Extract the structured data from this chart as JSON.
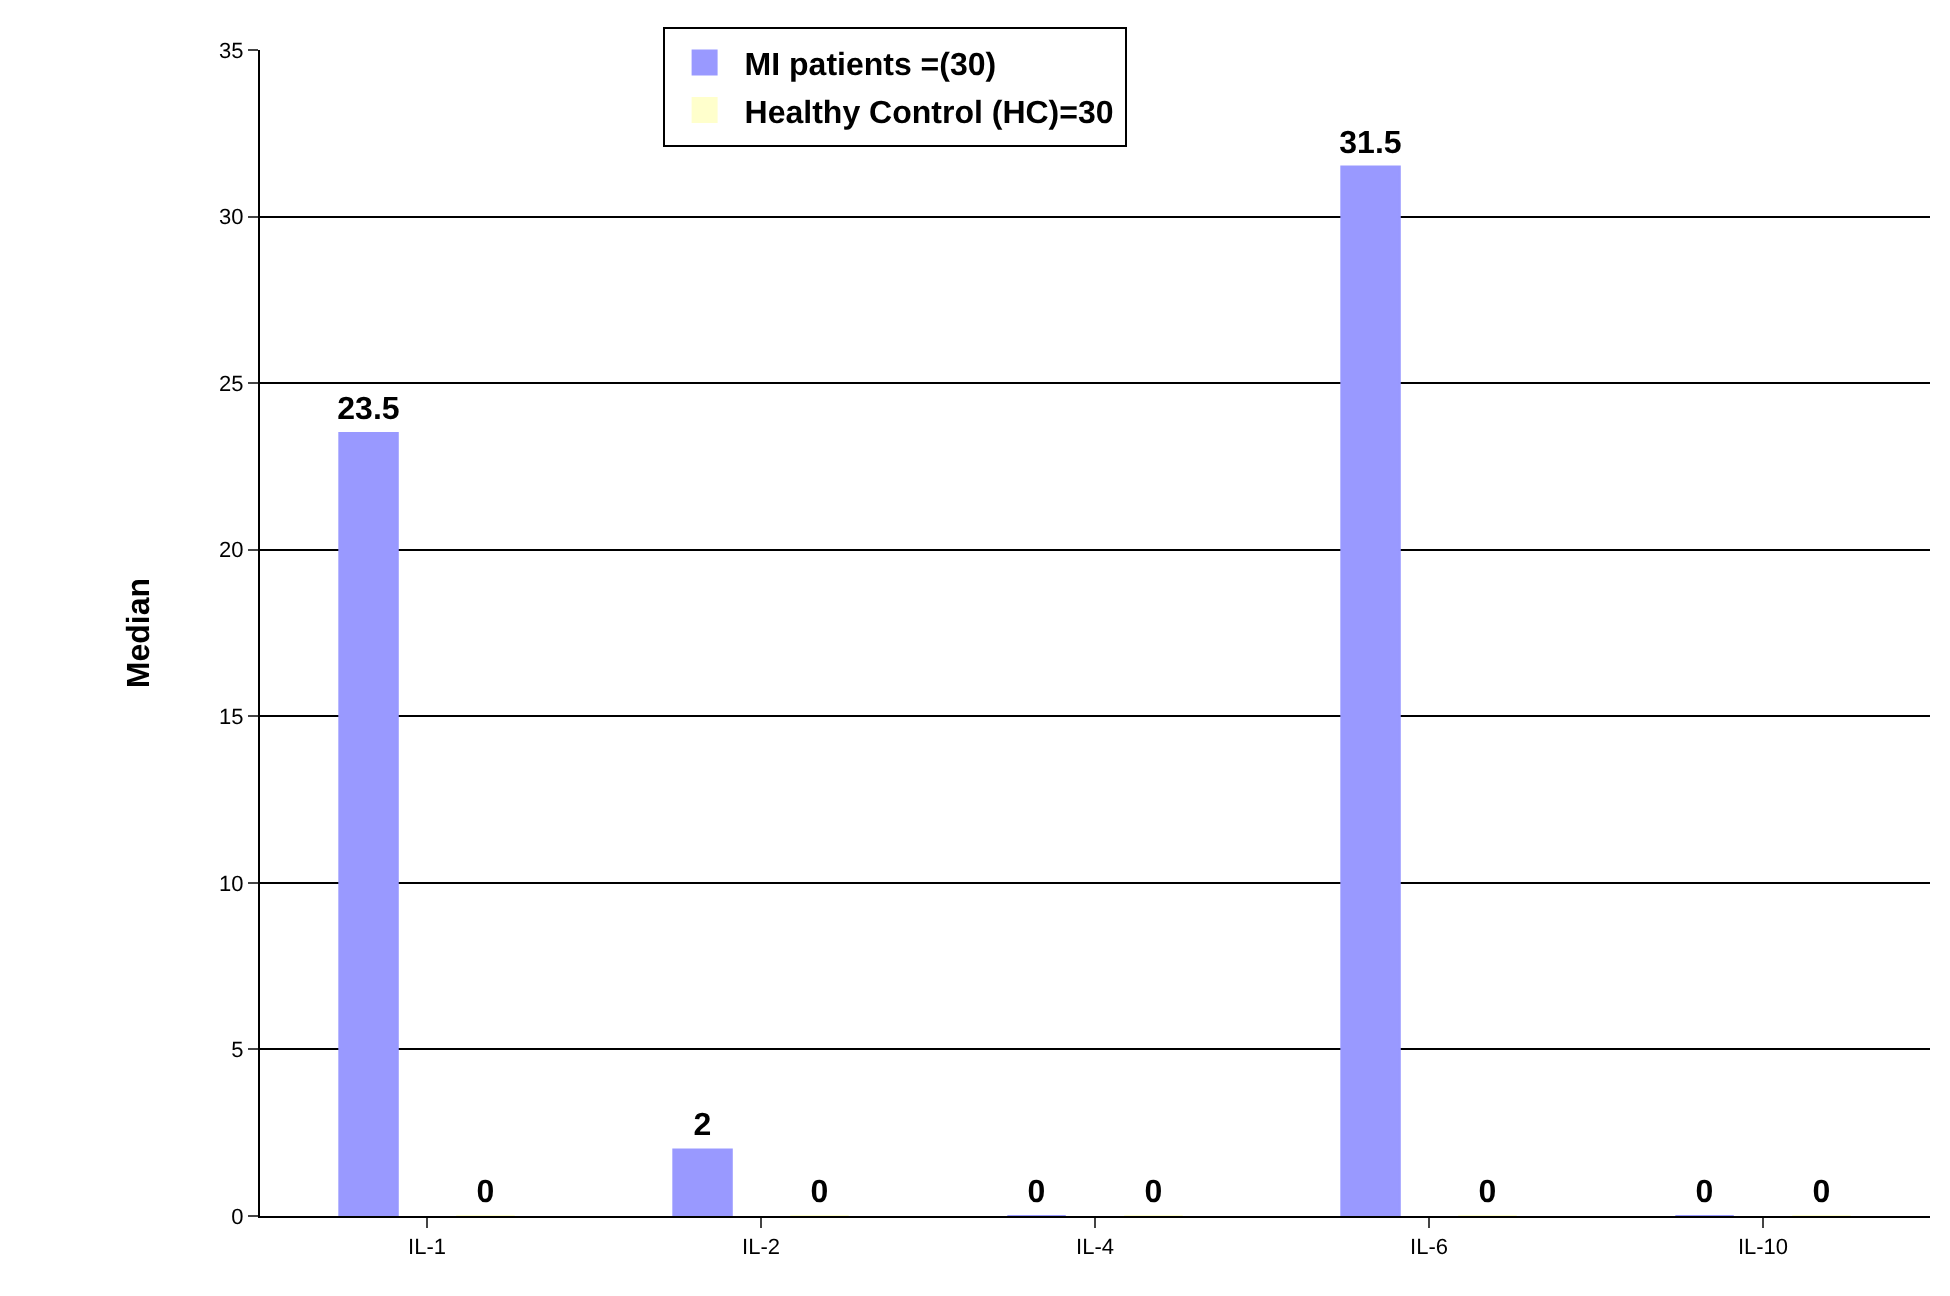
{
  "chart_data": {
    "type": "bar",
    "ylabel": "Median",
    "categories": [
      "IL-1",
      "IL-2",
      "IL-4",
      "IL-6",
      "IL-10"
    ],
    "series": [
      {
        "name": "MI patients =(30)",
        "color": "#9999ff",
        "values": [
          23.5,
          2,
          0,
          31.5,
          0
        ]
      },
      {
        "name": "Healthy Control (HC)=30",
        "color": "#ffffcc",
        "values": [
          0,
          0,
          0,
          0,
          0
        ]
      }
    ],
    "ylim": [
      0,
      35
    ],
    "yticks": [
      0,
      5,
      10,
      15,
      20,
      25,
      30,
      35
    ],
    "grid": "y",
    "legend": "top",
    "data_labels": true
  }
}
